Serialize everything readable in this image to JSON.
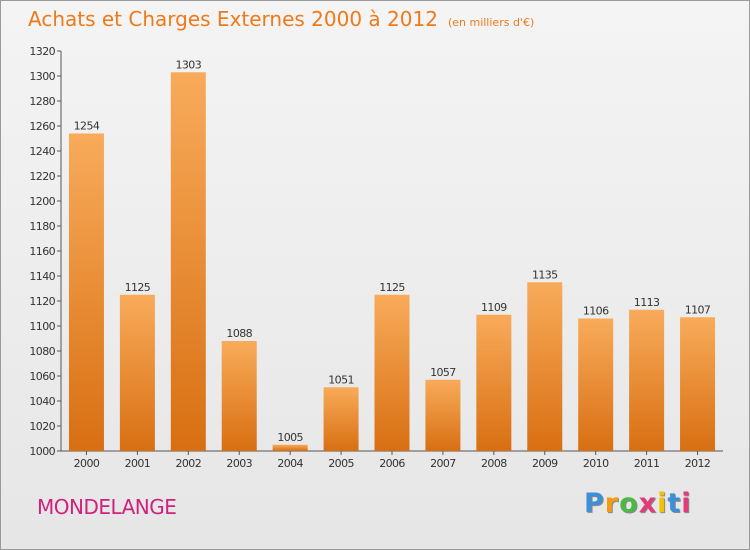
{
  "chart_data": {
    "type": "bar",
    "title": "Achats et Charges Externes 2000 à 2012",
    "subtitle": "(en milliers d'€)",
    "categories": [
      "2000",
      "2001",
      "2002",
      "2003",
      "2004",
      "2005",
      "2006",
      "2007",
      "2008",
      "2009",
      "2010",
      "2011",
      "2012"
    ],
    "values": [
      1254,
      1125,
      1303,
      1088,
      1005,
      1051,
      1125,
      1057,
      1109,
      1135,
      1106,
      1113,
      1107
    ],
    "ylim": [
      1000,
      1320
    ],
    "yticks": [
      1000,
      1020,
      1040,
      1060,
      1080,
      1100,
      1120,
      1140,
      1160,
      1180,
      1200,
      1220,
      1240,
      1260,
      1280,
      1300,
      1320
    ],
    "grid": false,
    "bar_color": "#f0922e",
    "bar_color_light": "#f8ab5a",
    "bar_color_dark": "#d86f12"
  },
  "place": "MONDELANGE",
  "logo": {
    "letters": [
      "P",
      "r",
      "o",
      "x",
      "i",
      "t",
      "i"
    ],
    "colors": [
      "#3d8fd6",
      "#f39c12",
      "#4cb848",
      "#e23a7a",
      "#f2c200",
      "#3d8fd6",
      "#e23a7a"
    ]
  }
}
